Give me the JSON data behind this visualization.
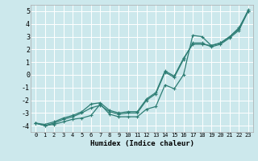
{
  "xlabel": "Humidex (Indice chaleur)",
  "ylabel": "",
  "bg_color": "#cce8ec",
  "grid_color": "#ffffff",
  "line_color": "#2d7d74",
  "xlim": [
    -0.5,
    23.5
  ],
  "ylim": [
    -4.5,
    5.5
  ],
  "xticks": [
    0,
    1,
    2,
    3,
    4,
    5,
    6,
    7,
    8,
    9,
    10,
    11,
    12,
    13,
    14,
    15,
    16,
    17,
    18,
    19,
    20,
    21,
    22,
    23
  ],
  "yticks": [
    -4,
    -3,
    -2,
    -1,
    0,
    1,
    2,
    3,
    4,
    5
  ],
  "x": [
    0,
    1,
    2,
    3,
    4,
    5,
    6,
    7,
    8,
    9,
    10,
    11,
    12,
    13,
    14,
    15,
    16,
    17,
    18,
    19,
    20,
    21,
    22,
    23
  ],
  "values1": [
    -3.8,
    -4.0,
    -3.9,
    -3.7,
    -3.5,
    -3.4,
    -3.2,
    -2.3,
    -3.1,
    -3.3,
    -3.3,
    -3.3,
    -2.7,
    -2.5,
    -0.8,
    -1.1,
    0.0,
    3.1,
    3.0,
    2.3,
    2.5,
    3.0,
    3.7,
    5.0
  ],
  "values2": [
    -3.8,
    -4.0,
    -3.8,
    -3.5,
    -3.3,
    -3.0,
    -2.6,
    -2.4,
    -2.9,
    -3.1,
    -3.0,
    -3.0,
    -2.0,
    -1.5,
    0.2,
    -0.2,
    1.2,
    2.5,
    2.5,
    2.2,
    2.4,
    2.9,
    3.5,
    5.0
  ],
  "values3": [
    -3.8,
    -3.9,
    -3.7,
    -3.4,
    -3.2,
    -2.9,
    -2.3,
    -2.2,
    -2.8,
    -3.0,
    -2.9,
    -2.9,
    -1.9,
    -1.4,
    0.3,
    -0.1,
    1.3,
    2.4,
    2.4,
    2.3,
    2.5,
    3.0,
    3.6,
    5.1
  ]
}
